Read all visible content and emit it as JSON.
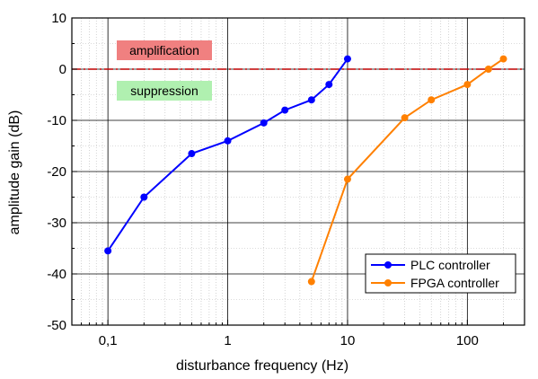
{
  "chart_data": {
    "type": "line",
    "xlabel": "disturbance frequency (Hz)",
    "ylabel": "amplitude gain (dB)",
    "xscale": "log",
    "xlim": [
      0.05,
      300
    ],
    "ylim": [
      -50,
      10
    ],
    "grid": true,
    "x_tick_labels": [
      {
        "value": 0.1,
        "label": "0,1"
      },
      {
        "value": 1,
        "label": "1"
      },
      {
        "value": 10,
        "label": "10"
      },
      {
        "value": 100,
        "label": "100"
      }
    ],
    "y_ticks": [
      10,
      0,
      -10,
      -20,
      -30,
      -40,
      -50
    ],
    "legend_position": "bottom-right",
    "reference_line": {
      "y": 0,
      "style": "dash-dot",
      "color": "#c00000"
    },
    "annotations": [
      {
        "text": "amplification",
        "color": "#f08080"
      },
      {
        "text": "suppression",
        "color": "#b0f0b0"
      }
    ],
    "series": [
      {
        "name": "PLC controller",
        "color": "#0000ff",
        "x": [
          0.1,
          0.2,
          0.5,
          1,
          2,
          3,
          5,
          7,
          10
        ],
        "y": [
          -35.5,
          -25,
          -16.5,
          -14,
          -10.5,
          -8,
          -6,
          -3,
          2
        ]
      },
      {
        "name": "FPGA controller",
        "color": "#ff8000",
        "x": [
          5,
          10,
          30,
          50,
          100,
          150,
          200
        ],
        "y": [
          -41.5,
          -21.5,
          -9.5,
          -6,
          -3,
          0,
          2
        ]
      }
    ]
  }
}
